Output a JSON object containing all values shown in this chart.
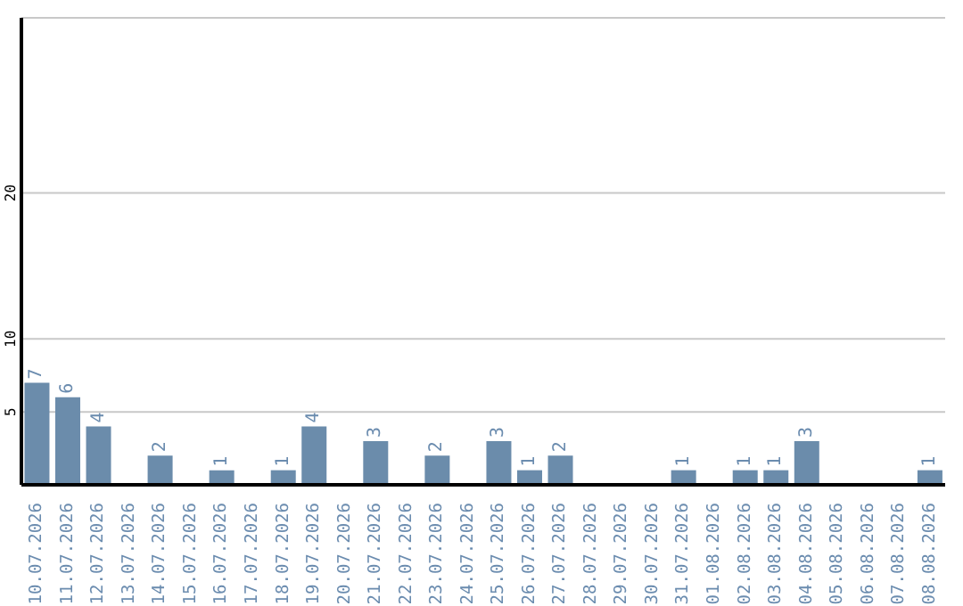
{
  "chart_data": {
    "type": "bar",
    "categories": [
      "10.07.2026",
      "11.07.2026",
      "12.07.2026",
      "13.07.2026",
      "14.07.2026",
      "15.07.2026",
      "16.07.2026",
      "17.07.2026",
      "18.07.2026",
      "19.07.2026",
      "20.07.2026",
      "21.07.2026",
      "22.07.2026",
      "23.07.2026",
      "24.07.2026",
      "25.07.2026",
      "26.07.2026",
      "27.07.2026",
      "28.07.2026",
      "29.07.2026",
      "30.07.2026",
      "31.07.2026",
      "01.08.2026",
      "02.08.2026",
      "03.08.2026",
      "04.08.2026",
      "05.08.2026",
      "06.08.2026",
      "07.08.2026",
      "08.08.2026"
    ],
    "values": [
      7,
      6,
      4,
      0,
      2,
      0,
      1,
      0,
      1,
      4,
      0,
      3,
      0,
      2,
      0,
      3,
      1,
      2,
      0,
      0,
      0,
      1,
      0,
      1,
      1,
      3,
      0,
      0,
      0,
      1
    ],
    "value_labels": [
      "7",
      "6",
      "4",
      null,
      "2",
      null,
      "1",
      null,
      "1",
      "4",
      null,
      "3",
      null,
      "2",
      null,
      "3",
      "1",
      "2",
      null,
      null,
      null,
      "1",
      null,
      "1",
      "1",
      "3",
      null,
      null,
      null,
      "1"
    ],
    "color": "#6b8cab",
    "ylim": [
      0,
      32
    ],
    "yticks": [
      5,
      10,
      20
    ],
    "grid": "y"
  }
}
